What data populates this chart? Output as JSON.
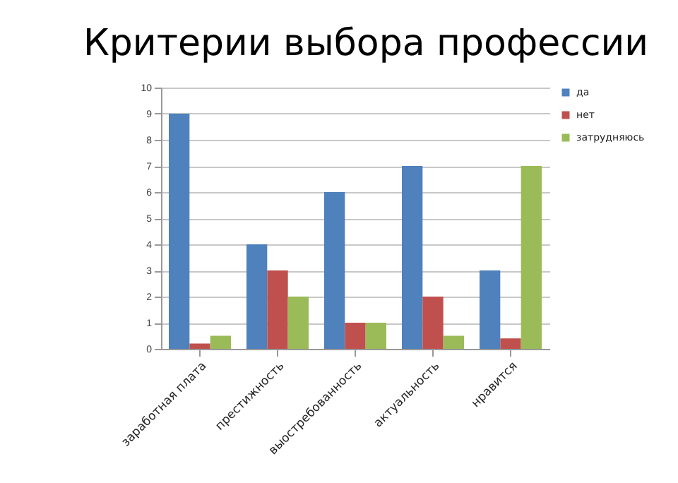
{
  "chart_data": {
    "type": "bar",
    "title": "Критерии выбора профессии",
    "categories": [
      "заработная плата",
      "престижность",
      "выостребованность",
      "актуальность",
      "нравится"
    ],
    "series": [
      {
        "name": "да",
        "color": "#4f81bd",
        "values": [
          9,
          4,
          6,
          7,
          3
        ]
      },
      {
        "name": "нет",
        "color": "#c0504d",
        "values": [
          0.2,
          3,
          1,
          2,
          0.4
        ]
      },
      {
        "name": "затрудняюсь",
        "color": "#9bbb59",
        "values": [
          0.5,
          2,
          1,
          0.5,
          7
        ]
      }
    ],
    "ylim": [
      0,
      10
    ],
    "yticks": [
      0,
      1,
      2,
      3,
      4,
      5,
      6,
      7,
      8,
      9,
      10
    ],
    "grid": "y",
    "legend": "right"
  }
}
